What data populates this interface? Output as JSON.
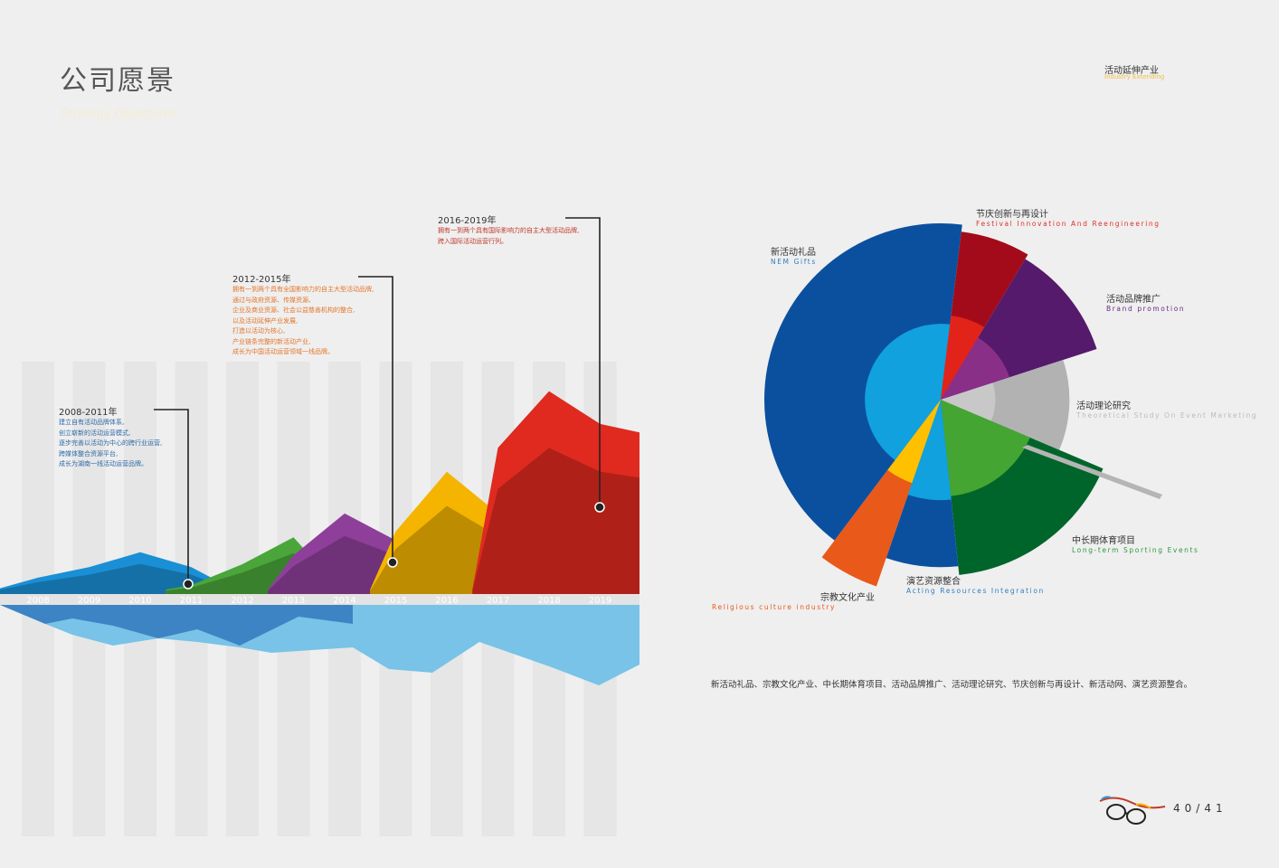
{
  "header": {
    "title": "公司愿景",
    "subtitle": "Strategy Objectives",
    "right_title": "活动延伸产业",
    "right_subtitle": "Industry Extending"
  },
  "annotations": [
    {
      "year": "2008-2011年",
      "lines": [
        "建立自有活动品牌体系,",
        "创立崭新的活动运营模式,",
        "逐步完善以活动为中心的跨行业运营,",
        "跨媒体整合资源平台,",
        "成长为湖南一线活动运营品牌。"
      ]
    },
    {
      "year": "2012-2015年",
      "lines": [
        "拥有一到两个具有全国影响力的自主大型活动品牌,",
        "通过与政府资源、传媒资源、",
        "企业及商业资源、社会公益慈善机构的整合,",
        "以及活动延伸产业发展,",
        "打造以活动为核心,",
        "产业链条完整的新活动产业,",
        "成长为中国活动运营领域一线品牌。"
      ]
    },
    {
      "year": "2016-2019年",
      "lines": [
        "拥有一到两个具有国际影响力的自主大型活动品牌,",
        "跨入国际活动运营行列。"
      ]
    }
  ],
  "chart_data": [
    {
      "type": "area",
      "x": [
        "2008",
        "2009",
        "2010",
        "2011",
        "2012",
        "2013",
        "2014",
        "2015",
        "2016",
        "2017",
        "2018",
        "2019"
      ],
      "series": [
        {
          "color": "#1a8fd5",
          "values": [
            0.55,
            0.9,
            1.4,
            0.9,
            0.0,
            0.0,
            0.0,
            0.0,
            0.0,
            0.0,
            0.0,
            0.0
          ]
        },
        {
          "color": "#4aa63a",
          "values": [
            0.0,
            0.0,
            0.0,
            0.3,
            1.0,
            1.9,
            0.0,
            0.0,
            0.0,
            0.0,
            0.0,
            0.0
          ]
        },
        {
          "color": "#8e3f99",
          "values": [
            0.0,
            0.0,
            0.0,
            0.0,
            0.0,
            1.3,
            2.7,
            1.8,
            0.0,
            0.0,
            0.0,
            0.0
          ]
        },
        {
          "color": "#f4b400",
          "values": [
            0.0,
            0.0,
            0.0,
            0.0,
            0.0,
            0.0,
            0.0,
            2.1,
            4.1,
            2.7,
            0.0,
            0.0
          ]
        },
        {
          "color": "#e02a1f",
          "values": [
            0.0,
            0.0,
            0.0,
            0.0,
            0.0,
            0.0,
            0.0,
            0.0,
            0.0,
            4.9,
            6.8,
            5.7
          ]
        }
      ],
      "xlabel": "",
      "ylabel": ""
    },
    {
      "type": "pie",
      "title": "",
      "slices": [
        {
          "cn": "新活动礼品",
          "en": "NEM Gifts",
          "color": "#0b509e",
          "en_color": "#2e7fc0",
          "inner_color": "#11a1de",
          "outer": 1.0,
          "inner": 0.43
        },
        {
          "cn": "节庆创新与再设计",
          "en": "Festival Innovation And Reengineering",
          "color": "#a30b1a",
          "en_color": "#e0302b",
          "inner_color": "#e2231a",
          "outer": 0.96,
          "inner": 0.48
        },
        {
          "cn": "活动品牌推广",
          "en": "Brand promotion",
          "color": "#551a6b",
          "en_color": "#6a2a80",
          "inner_color": "#8a2f88",
          "outer": 0.93,
          "inner": 0.41
        },
        {
          "cn": "活动理论研究",
          "en": "Theoretical Study On Event Marketing",
          "color": "#b2b2b2",
          "en_color": "#bbbbbb",
          "inner_color": "#c8c8c8",
          "outer": 0.73,
          "inner": 0.31
        },
        {
          "cn": "中长期体育项目",
          "en": "Long-term Sporting Events",
          "color": "#00652a",
          "en_color": "#2e9a3e",
          "inner_color": "#44a533",
          "outer": 1.0,
          "inner": 0.55
        },
        {
          "cn": "演艺资源整合",
          "en": "Acting Resources Integration",
          "color": "#0b509e",
          "en_color": "#2e7fc0",
          "inner_color": "#11a1de",
          "outer": 0.95,
          "inner": 0.57
        },
        {
          "cn": "宗教文化产业",
          "en": "Religious culture industry",
          "color": "#e8591a",
          "en_color": "#e8591a",
          "inner_color": "#ffc000",
          "outer": 1.12,
          "inner": 0.5
        }
      ]
    }
  ],
  "summary": "新活动礼品、宗教文化产业、中长期体育项目、活动品牌推广、活动理论研究、节庆创新与再设计、新活动网、演艺资源整合。",
  "page_number": "40/41"
}
